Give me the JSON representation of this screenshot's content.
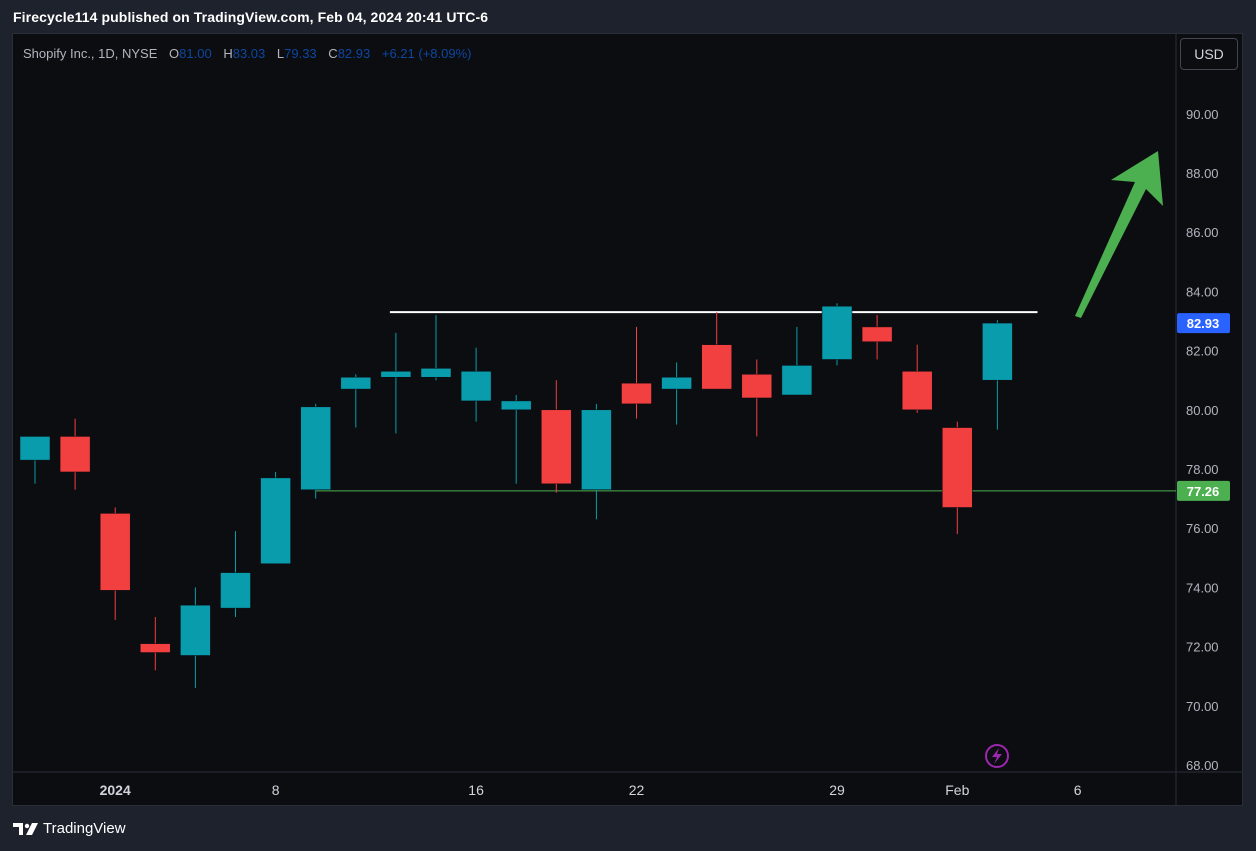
{
  "header": {
    "published": "Firecycle114 published on TradingView.com, Feb 04, 2024 20:41 UTC-6"
  },
  "legend": {
    "symbol": "Shopify Inc., 1D, NYSE",
    "o_label": "O",
    "o_value": "81.00",
    "h_label": "H",
    "h_value": "83.03",
    "l_label": "L",
    "l_value": "79.33",
    "c_label": "C",
    "c_value": "82.93",
    "change": "+6.21 (+8.09%)"
  },
  "currency_button": "USD",
  "footer": {
    "brand": "TradingView"
  },
  "colors": {
    "up": "#089cac",
    "down": "#f23f3f",
    "background": "#0c0d11",
    "resistance": "#ffffff",
    "support": "#4caf50",
    "arrow": "#4caf50",
    "price_tag": "#2962ff"
  },
  "chart_data": {
    "type": "candlestick",
    "ylim": [
      67.5,
      91.5
    ],
    "y_ticks": [
      "90.00",
      "88.00",
      "86.00",
      "84.00",
      "82.00",
      "80.00",
      "78.00",
      "76.00",
      "74.00",
      "72.00",
      "70.00",
      "68.00"
    ],
    "x_ticks": [
      {
        "label": "2024",
        "index": 2,
        "bold": true
      },
      {
        "label": "8",
        "index": 6
      },
      {
        "label": "16",
        "index": 11
      },
      {
        "label": "22",
        "index": 15
      },
      {
        "label": "29",
        "index": 20
      },
      {
        "label": "Feb",
        "index": 23
      },
      {
        "label": "6",
        "index": 26
      }
    ],
    "candles": [
      {
        "o": 78.3,
        "h": 79.1,
        "l": 77.5,
        "c": 79.1
      },
      {
        "o": 79.1,
        "h": 79.7,
        "l": 77.3,
        "c": 77.9
      },
      {
        "o": 76.5,
        "h": 76.7,
        "l": 72.9,
        "c": 73.9
      },
      {
        "o": 72.1,
        "h": 73.0,
        "l": 71.2,
        "c": 71.8
      },
      {
        "o": 71.7,
        "h": 74.0,
        "l": 70.6,
        "c": 73.4
      },
      {
        "o": 73.3,
        "h": 75.9,
        "l": 73.0,
        "c": 74.5
      },
      {
        "o": 74.8,
        "h": 77.9,
        "l": 74.8,
        "c": 77.7
      },
      {
        "o": 77.3,
        "h": 80.2,
        "l": 77.0,
        "c": 80.1
      },
      {
        "o": 80.7,
        "h": 81.2,
        "l": 79.4,
        "c": 81.1
      },
      {
        "o": 81.1,
        "h": 82.6,
        "l": 79.2,
        "c": 81.3
      },
      {
        "o": 81.1,
        "h": 83.2,
        "l": 81.0,
        "c": 81.4
      },
      {
        "o": 80.3,
        "h": 82.1,
        "l": 79.6,
        "c": 81.3
      },
      {
        "o": 80.0,
        "h": 80.5,
        "l": 77.5,
        "c": 80.3
      },
      {
        "o": 80.0,
        "h": 81.0,
        "l": 77.2,
        "c": 77.5
      },
      {
        "o": 77.3,
        "h": 80.2,
        "l": 76.3,
        "c": 80.0
      },
      {
        "o": 80.9,
        "h": 82.8,
        "l": 79.7,
        "c": 80.2
      },
      {
        "o": 80.7,
        "h": 81.6,
        "l": 79.5,
        "c": 81.1
      },
      {
        "o": 82.2,
        "h": 83.3,
        "l": 80.7,
        "c": 80.7
      },
      {
        "o": 81.2,
        "h": 81.7,
        "l": 79.1,
        "c": 80.4
      },
      {
        "o": 80.5,
        "h": 82.8,
        "l": 80.5,
        "c": 81.5
      },
      {
        "o": 81.7,
        "h": 83.6,
        "l": 81.5,
        "c": 83.5
      },
      {
        "o": 82.8,
        "h": 83.2,
        "l": 81.7,
        "c": 82.3
      },
      {
        "o": 81.3,
        "h": 82.2,
        "l": 79.9,
        "c": 80.0
      },
      {
        "o": 79.4,
        "h": 79.6,
        "l": 75.8,
        "c": 76.7
      },
      {
        "o": 81.0,
        "h": 83.03,
        "l": 79.33,
        "c": 82.93
      }
    ],
    "resistance_line": {
      "value": 83.3,
      "from_index": 9,
      "to_index": 25
    },
    "support_line": {
      "value": 77.26,
      "label": "77.26"
    },
    "last_price_label": {
      "value": 82.93,
      "label": "82.93"
    }
  }
}
